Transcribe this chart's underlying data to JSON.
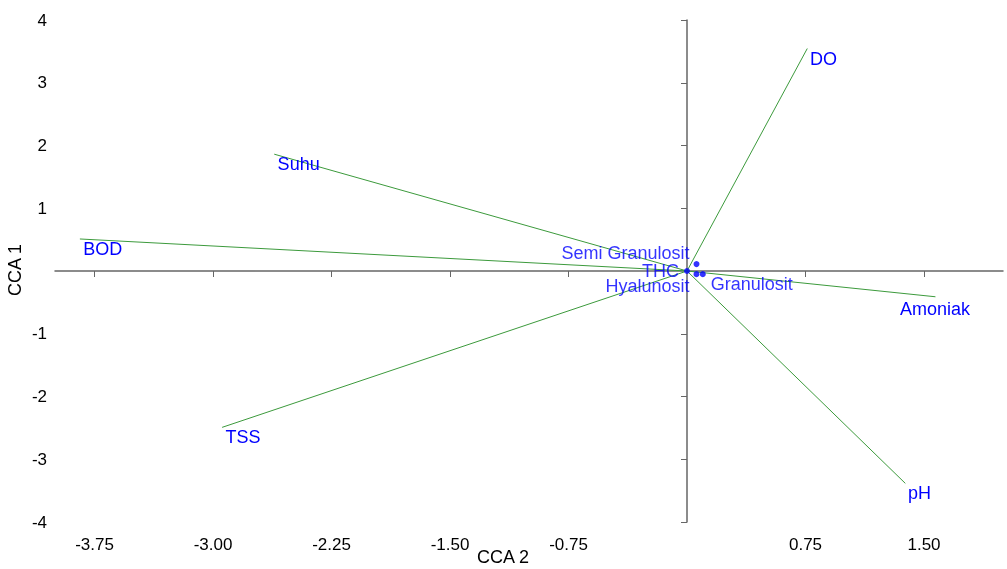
{
  "chart_data": {
    "type": "scatter",
    "xlabel": "CCA 2",
    "ylabel": "CCA 1",
    "xlim": [
      -4.0,
      2.0
    ],
    "ylim": [
      -4,
      4
    ],
    "xticks": [
      {
        "value": -3.75,
        "label": "-3.75"
      },
      {
        "value": -3.0,
        "label": "-3.00"
      },
      {
        "value": -2.25,
        "label": "-2.25"
      },
      {
        "value": -1.5,
        "label": "-1.50"
      },
      {
        "value": -0.75,
        "label": "-0.75"
      },
      {
        "value": 0.75,
        "label": "0.75"
      },
      {
        "value": 1.5,
        "label": "1.50"
      }
    ],
    "yticks": [
      4,
      3,
      2,
      1,
      -1,
      -2,
      -3,
      -4
    ],
    "grid": false,
    "legend": false,
    "marker": "circle",
    "series": [
      {
        "name": "DO",
        "type": "line",
        "marker": "none",
        "color": "#3c9a3c",
        "x": [
          0,
          0.76
        ],
        "values": [
          0,
          3.54
        ]
      },
      {
        "name": "Suhu",
        "type": "line",
        "marker": "none",
        "color": "#3c9a3c",
        "x": [
          0,
          -2.61
        ],
        "values": [
          0,
          1.86
        ]
      },
      {
        "name": "BOD",
        "type": "line",
        "marker": "none",
        "color": "#3c9a3c",
        "x": [
          0,
          -3.84
        ],
        "values": [
          0,
          0.51
        ]
      },
      {
        "name": "TSS",
        "type": "line",
        "marker": "none",
        "color": "#3c9a3c",
        "x": [
          0,
          -2.94
        ],
        "values": [
          0,
          -2.49
        ]
      },
      {
        "name": "pH",
        "type": "line",
        "marker": "none",
        "color": "#3c9a3c",
        "x": [
          0,
          1.38
        ],
        "values": [
          0,
          -3.38
        ]
      },
      {
        "name": "Amoniak",
        "type": "line",
        "marker": "none",
        "color": "#3c9a3c",
        "x": [
          0,
          1.57
        ],
        "values": [
          0,
          -0.41
        ]
      },
      {
        "name": "THC",
        "color": "#0000ff",
        "x": [
          0
        ],
        "values": [
          0
        ]
      },
      {
        "name": "Semi Granulosit",
        "color": "#0000ff",
        "x": [
          0.06
        ],
        "values": [
          0.11
        ]
      },
      {
        "name": "Hyalunosit",
        "color": "#0000ff",
        "x": [
          0.06
        ],
        "values": [
          -0.05
        ]
      },
      {
        "name": "Granulosit",
        "color": "#0000ff",
        "x": [
          0.1
        ],
        "values": [
          -0.05
        ]
      }
    ]
  }
}
